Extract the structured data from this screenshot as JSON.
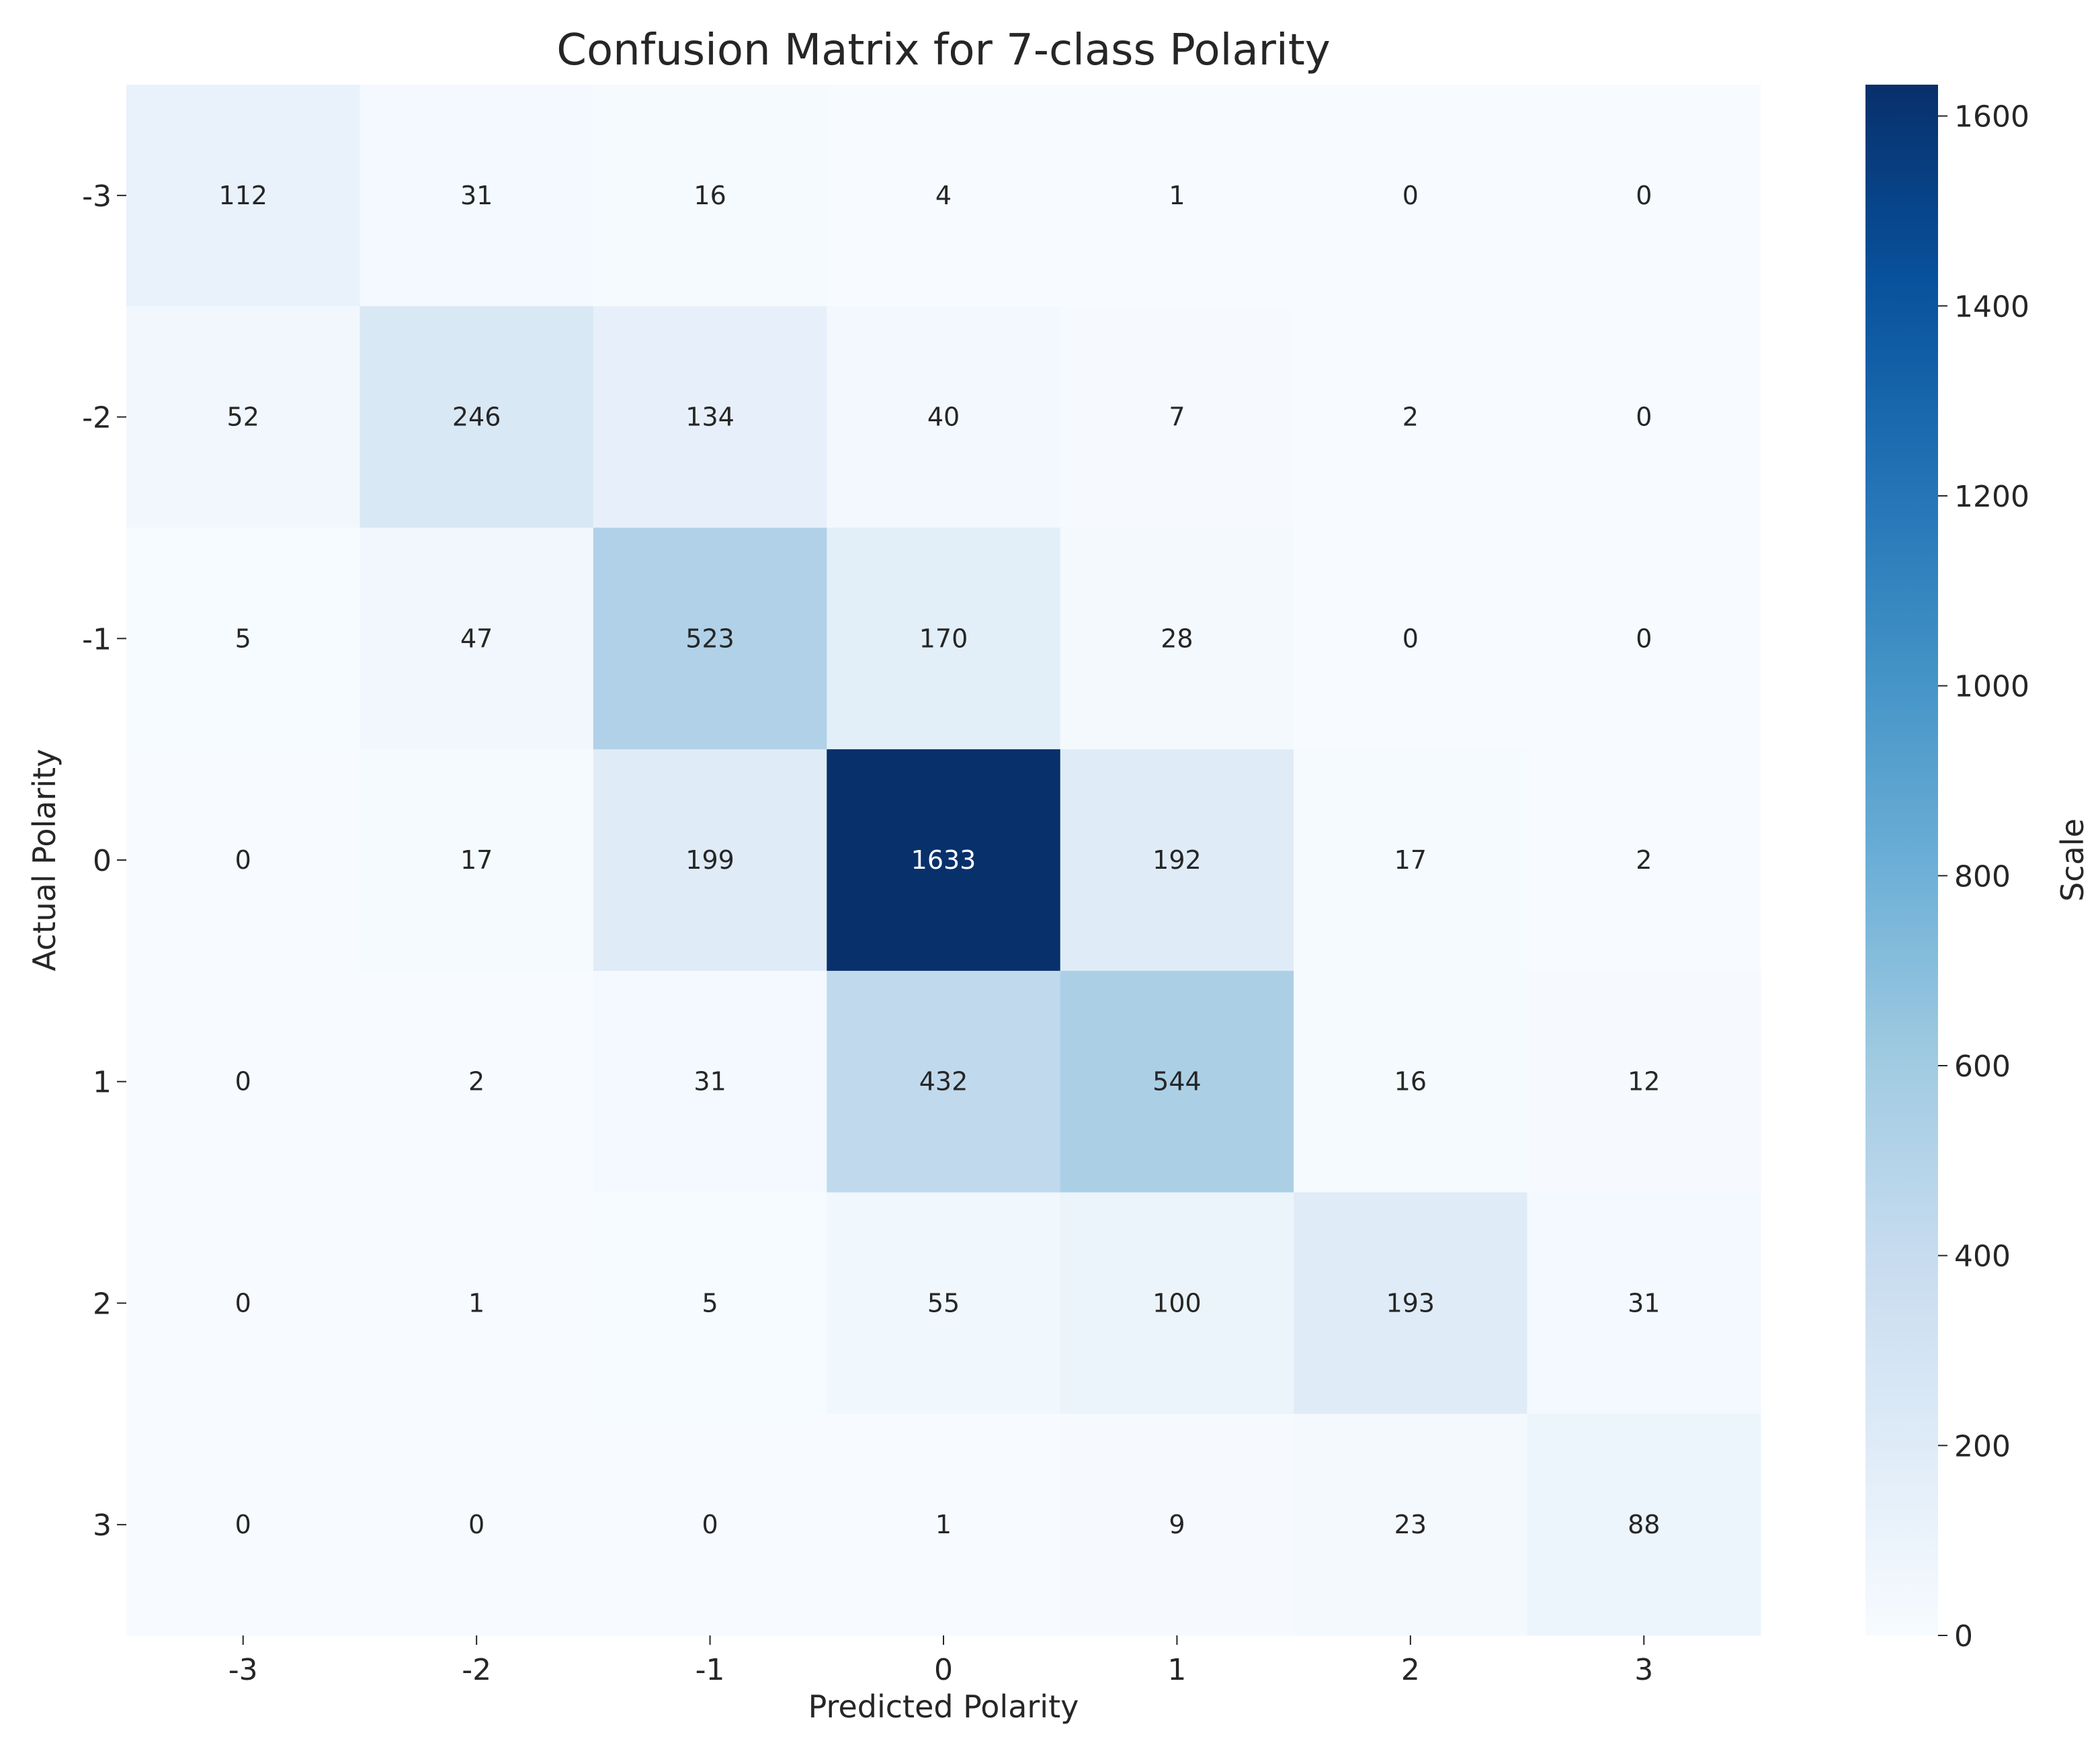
{
  "chart_data": {
    "type": "heatmap",
    "title": "Confusion Matrix for 7-class Polarity",
    "xlabel": "Predicted Polarity",
    "ylabel": "Actual Polarity",
    "x_categories": [
      "-3",
      "-2",
      "-1",
      "0",
      "1",
      "2",
      "3"
    ],
    "y_categories": [
      "-3",
      "-2",
      "-1",
      "0",
      "1",
      "2",
      "3"
    ],
    "values": [
      [
        112,
        31,
        16,
        4,
        1,
        0,
        0
      ],
      [
        52,
        246,
        134,
        40,
        7,
        2,
        0
      ],
      [
        5,
        47,
        523,
        170,
        28,
        0,
        0
      ],
      [
        0,
        17,
        199,
        1633,
        192,
        17,
        2
      ],
      [
        0,
        2,
        31,
        432,
        544,
        16,
        12
      ],
      [
        0,
        1,
        5,
        55,
        100,
        193,
        31
      ],
      [
        0,
        0,
        0,
        1,
        9,
        23,
        88
      ]
    ],
    "colormap": "Blues",
    "vmin": 0,
    "vmax": 1633,
    "colorbar": {
      "label": "Scale",
      "ticks": [
        "0",
        "200",
        "400",
        "600",
        "800",
        "1000",
        "1200",
        "1400",
        "1600"
      ],
      "tick_values": [
        0,
        200,
        400,
        600,
        800,
        1000,
        1200,
        1400,
        1600
      ]
    }
  }
}
